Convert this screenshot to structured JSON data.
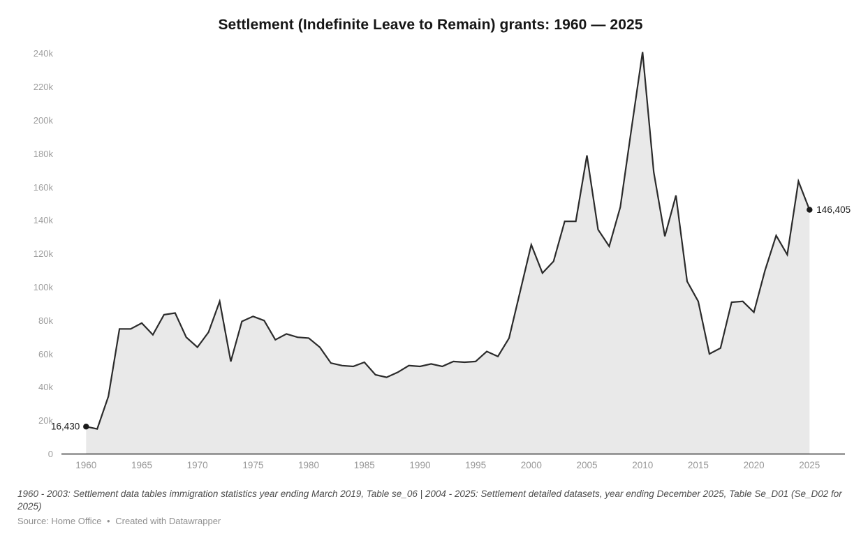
{
  "title": "Settlement (Indefinite Leave to Remain) grants: 1960 — 2025",
  "chart_data": {
    "type": "area",
    "title": "Settlement (Indefinite Leave to Remain) grants: 1960 — 2025",
    "xlabel": "",
    "ylabel": "",
    "xlim": [
      1960,
      2025
    ],
    "ylim": [
      0,
      240000
    ],
    "grid": "off",
    "legend": "none",
    "x": [
      1960,
      1961,
      1962,
      1963,
      1964,
      1965,
      1966,
      1967,
      1968,
      1969,
      1970,
      1971,
      1972,
      1973,
      1974,
      1975,
      1976,
      1977,
      1978,
      1979,
      1980,
      1981,
      1982,
      1983,
      1984,
      1985,
      1986,
      1987,
      1988,
      1989,
      1990,
      1991,
      1992,
      1993,
      1994,
      1995,
      1996,
      1997,
      1998,
      1999,
      2000,
      2001,
      2002,
      2003,
      2004,
      2005,
      2006,
      2007,
      2008,
      2009,
      2010,
      2011,
      2012,
      2013,
      2014,
      2015,
      2016,
      2017,
      2018,
      2019,
      2020,
      2021,
      2022,
      2023,
      2024,
      2025
    ],
    "values": [
      16430,
      15000,
      34500,
      75000,
      75000,
      78500,
      71500,
      83500,
      84500,
      70000,
      64000,
      73000,
      91500,
      55500,
      79500,
      82500,
      80000,
      68500,
      72000,
      70000,
      69500,
      64000,
      54500,
      53000,
      52500,
      55000,
      47500,
      46000,
      49000,
      53000,
      52500,
      54000,
      52500,
      55500,
      55000,
      55500,
      61500,
      58500,
      69500,
      97500,
      125500,
      108500,
      115500,
      139500,
      139500,
      179000,
      134500,
      124500,
      148000,
      195000,
      241000,
      169000,
      130500,
      155000,
      103500,
      91500,
      60000,
      63500,
      91000,
      91500,
      85000,
      110000,
      131000,
      119500,
      163500,
      146405
    ],
    "y_ticks": [
      {
        "value": 0,
        "label": "0"
      },
      {
        "value": 20000,
        "label": "20k"
      },
      {
        "value": 40000,
        "label": "40k"
      },
      {
        "value": 60000,
        "label": "60k"
      },
      {
        "value": 80000,
        "label": "80k"
      },
      {
        "value": 100000,
        "label": "100k"
      },
      {
        "value": 120000,
        "label": "120k"
      },
      {
        "value": 140000,
        "label": "140k"
      },
      {
        "value": 160000,
        "label": "160k"
      },
      {
        "value": 180000,
        "label": "180k"
      },
      {
        "value": 200000,
        "label": "200k"
      },
      {
        "value": 220000,
        "label": "220k"
      },
      {
        "value": 240000,
        "label": "240k"
      }
    ],
    "x_ticks": [
      {
        "value": 1960,
        "label": "1960"
      },
      {
        "value": 1965,
        "label": "1965"
      },
      {
        "value": 1970,
        "label": "1970"
      },
      {
        "value": 1975,
        "label": "1975"
      },
      {
        "value": 1980,
        "label": "1980"
      },
      {
        "value": 1985,
        "label": "1985"
      },
      {
        "value": 1990,
        "label": "1990"
      },
      {
        "value": 1995,
        "label": "1995"
      },
      {
        "value": 2000,
        "label": "2000"
      },
      {
        "value": 2005,
        "label": "2005"
      },
      {
        "value": 2010,
        "label": "2010"
      },
      {
        "value": 2015,
        "label": "2015"
      },
      {
        "value": 2020,
        "label": "2020"
      },
      {
        "value": 2025,
        "label": "2025"
      }
    ],
    "start_point_label": "16,430",
    "end_point_label": "146,405",
    "colors": {
      "line": "#2b2b2b",
      "fill": "#e9e9e9",
      "dot": "#1a1a1a",
      "axis": "#333333",
      "tick_text": "#9d9d9d"
    }
  },
  "footer": {
    "notes": "1960 - 2003: Settlement data tables immigration statistics year ending March 2019, Table se_06 | 2004 - 2025: Settlement detailed datasets, year ending December 2025, Table Se_D01 (Se_D02 for 2025)",
    "source": "Source: Home Office",
    "separator": "•",
    "credit": "Created with Datawrapper"
  }
}
